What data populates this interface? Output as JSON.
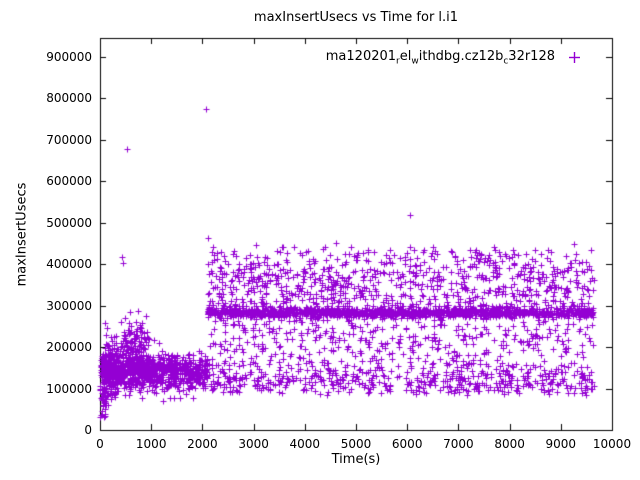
{
  "title": "maxInsertUsecs vs Time for l.i1",
  "axes": {
    "xlabel": "Time(s)",
    "ylabel": "maxInsertUsecs",
    "xlim": [
      0,
      10000
    ],
    "ylim": [
      0,
      945000
    ],
    "x_ticks": [
      0,
      1000,
      2000,
      3000,
      4000,
      5000,
      6000,
      7000,
      8000,
      9000,
      10000
    ],
    "y_ticks": [
      0,
      100000,
      200000,
      300000,
      400000,
      500000,
      600000,
      700000,
      800000,
      900000
    ]
  },
  "legend": {
    "segments": [
      {
        "t": "ma120201"
      },
      {
        "s": "r"
      },
      {
        "t": "el"
      },
      {
        "s": "w"
      },
      {
        "t": "ithdbg.cz12b"
      },
      {
        "s": "c"
      },
      {
        "t": "32r128"
      }
    ],
    "marker": "plus"
  },
  "colors": {
    "series": "#9400d3",
    "axis": "#000000",
    "background": "#ffffff"
  },
  "chart_data": {
    "type": "scatter",
    "series_name": "ma120201_rel_withdbg.cz12b_c32r128",
    "marker": "plus",
    "x_range_observed": [
      5,
      9650
    ],
    "description": "Dense band near y=140000 for x<2100, then dense band near y=283000 plus broad scatter 88000-440000 for x>2100",
    "generation": {
      "seed": 1337,
      "clusters": [
        {
          "type": "gaussian",
          "x": [
            5,
            2100
          ],
          "count": 900,
          "y_mean": 140000,
          "y_sd": 22000,
          "y_clamp": [
            65000,
            230000
          ]
        },
        {
          "type": "gaussian",
          "x": [
            60,
            350
          ],
          "count": 120,
          "y_mean": 150000,
          "y_sd": 45000,
          "y_clamp": [
            60000,
            280000
          ]
        },
        {
          "type": "gaussian",
          "x": [
            400,
            950
          ],
          "count": 140,
          "y_mean": 195000,
          "y_sd": 38000,
          "y_clamp": [
            110000,
            292000
          ]
        },
        {
          "type": "uniform",
          "x": [
            5,
            120
          ],
          "count": 25,
          "y": [
            30000,
            110000
          ]
        },
        {
          "type": "gaussian",
          "x": [
            2100,
            9650
          ],
          "count": 1150,
          "y_mean": 283000,
          "y_sd": 5500,
          "y_clamp": [
            265000,
            300000
          ]
        },
        {
          "type": "uniform",
          "x": [
            2100,
            9650
          ],
          "count": 1250,
          "y": [
            88000,
            435000
          ]
        },
        {
          "type": "gaussian",
          "x": [
            2100,
            9650
          ],
          "count": 260,
          "y_mean": 118000,
          "y_sd": 16000,
          "y_clamp": [
            85000,
            160000
          ]
        },
        {
          "type": "gaussian",
          "x": [
            2100,
            9650
          ],
          "count": 300,
          "y_mean": 350000,
          "y_sd": 45000,
          "y_clamp": [
            300000,
            440000
          ]
        }
      ],
      "outliers": [
        [
          30,
          35000
        ],
        [
          60,
          60000
        ],
        [
          430,
          418000
        ],
        [
          450,
          402000
        ],
        [
          520,
          678000
        ],
        [
          2075,
          775000
        ],
        [
          2110,
          462000
        ],
        [
          2200,
          440000
        ],
        [
          3050,
          447000
        ],
        [
          4600,
          452000
        ],
        [
          5350,
          430000
        ],
        [
          6050,
          518000
        ],
        [
          6500,
          442000
        ],
        [
          7800,
          430000
        ],
        [
          9250,
          448000
        ],
        [
          9500,
          405000
        ]
      ]
    }
  }
}
